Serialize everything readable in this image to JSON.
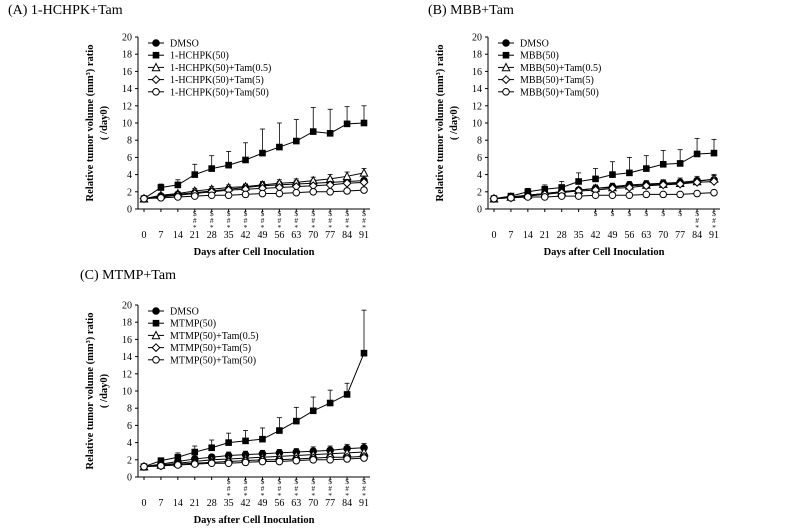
{
  "chart_data": [
    {
      "type": "line",
      "title": "(A) 1-HCHPK+Tam",
      "xlabel": "Days after Cell Inoculation",
      "ylabel_line1": "Relative tumor volume (mm³) ratio",
      "ylabel_line2": "( /day0)",
      "ylim": [
        0,
        20
      ],
      "yticks": [
        0,
        2,
        4,
        6,
        8,
        10,
        12,
        14,
        16,
        18,
        20
      ],
      "x": [
        0,
        7,
        14,
        21,
        28,
        35,
        42,
        49,
        56,
        63,
        70,
        77,
        84,
        91
      ],
      "legend_position": "top-left",
      "series": [
        {
          "name": "DMSO",
          "marker": "circle-filled",
          "values": [
            1.2,
            1.5,
            1.7,
            1.9,
            2.1,
            2.3,
            2.5,
            2.7,
            2.8,
            2.9,
            3.0,
            3.1,
            3.2,
            3.3
          ],
          "errors": [
            0.1,
            0.2,
            0.2,
            0.3,
            0.3,
            0.3,
            0.4,
            0.4,
            0.4,
            0.4,
            0.4,
            0.5,
            0.5,
            0.5
          ]
        },
        {
          "name": "1-HCHPK(50)",
          "marker": "square-filled",
          "values": [
            1.2,
            2.5,
            2.8,
            4.0,
            4.7,
            5.1,
            5.7,
            6.5,
            7.2,
            7.9,
            9.0,
            8.8,
            9.9,
            10.0
          ],
          "errors": [
            0.1,
            0.4,
            0.6,
            1.2,
            1.5,
            1.6,
            2.0,
            2.8,
            2.8,
            2.5,
            2.8,
            2.8,
            2.0,
            2.0
          ]
        },
        {
          "name": "1-HCHPK(50)+Tam(0.5)",
          "marker": "triangle-open",
          "values": [
            1.2,
            1.6,
            1.8,
            2.1,
            2.3,
            2.5,
            2.6,
            2.8,
            3.0,
            3.1,
            3.3,
            3.5,
            3.8,
            4.2
          ],
          "errors": [
            0.1,
            0.2,
            0.2,
            0.3,
            0.3,
            0.3,
            0.3,
            0.4,
            0.4,
            0.4,
            0.4,
            0.5,
            0.5,
            0.5
          ]
        },
        {
          "name": "1-HCHPK(50)+Tam(5)",
          "marker": "diamond-open",
          "values": [
            1.2,
            1.4,
            1.6,
            1.8,
            2.0,
            2.2,
            2.3,
            2.4,
            2.5,
            2.6,
            2.7,
            2.8,
            3.0,
            3.1
          ],
          "errors": [
            0.1,
            0.2,
            0.2,
            0.2,
            0.3,
            0.3,
            0.3,
            0.3,
            0.3,
            0.3,
            0.3,
            0.4,
            0.4,
            0.4
          ]
        },
        {
          "name": "1-HCHPK(50)+Tam(50)",
          "marker": "circle-open",
          "values": [
            1.2,
            1.3,
            1.4,
            1.5,
            1.6,
            1.6,
            1.7,
            1.8,
            1.8,
            1.9,
            2.0,
            2.0,
            2.1,
            2.2
          ],
          "errors": [
            0.1,
            0.1,
            0.1,
            0.2,
            0.2,
            0.2,
            0.2,
            0.2,
            0.2,
            0.2,
            0.3,
            0.3,
            0.3,
            0.3
          ]
        }
      ],
      "annotations": [
        {
          "x": 21,
          "lines": [
            "$",
            "#",
            "*"
          ]
        },
        {
          "x": 28,
          "lines": [
            "$",
            "#",
            "*"
          ]
        },
        {
          "x": 35,
          "lines": [
            "$",
            "#",
            "*"
          ]
        },
        {
          "x": 42,
          "lines": [
            "$",
            "#",
            "*"
          ]
        },
        {
          "x": 49,
          "lines": [
            "$",
            "#",
            "*"
          ]
        },
        {
          "x": 56,
          "lines": [
            "$",
            "#",
            "*"
          ]
        },
        {
          "x": 63,
          "lines": [
            "$",
            "#",
            "*"
          ]
        },
        {
          "x": 70,
          "lines": [
            "$",
            "#",
            "*"
          ]
        },
        {
          "x": 77,
          "lines": [
            "$",
            "#",
            "*"
          ]
        },
        {
          "x": 84,
          "lines": [
            "$",
            "#",
            "*"
          ]
        },
        {
          "x": 91,
          "lines": [
            "$",
            "#",
            "*"
          ]
        }
      ]
    },
    {
      "type": "line",
      "title": "(B) MBB+Tam",
      "xlabel": "Days after Cell Inoculation",
      "ylabel_line1": "Relative tumor volume (mm³) ratio",
      "ylabel_line2": "( /day0)",
      "ylim": [
        0,
        20
      ],
      "yticks": [
        0,
        2,
        4,
        6,
        8,
        10,
        12,
        14,
        16,
        18,
        20
      ],
      "x": [
        0,
        7,
        14,
        21,
        28,
        35,
        42,
        49,
        56,
        63,
        70,
        77,
        84,
        91
      ],
      "legend_position": "top-left",
      "series": [
        {
          "name": "DMSO",
          "marker": "circle-filled",
          "values": [
            1.2,
            1.4,
            1.6,
            1.8,
            2.0,
            2.2,
            2.4,
            2.6,
            2.8,
            2.9,
            3.0,
            3.1,
            3.3,
            3.4
          ],
          "errors": [
            0.1,
            0.2,
            0.2,
            0.3,
            0.3,
            0.3,
            0.4,
            0.4,
            0.4,
            0.4,
            0.4,
            0.5,
            0.5,
            0.5
          ]
        },
        {
          "name": "MBB(50)",
          "marker": "square-filled",
          "values": [
            1.2,
            1.5,
            2.0,
            2.3,
            2.5,
            3.2,
            3.5,
            4.0,
            4.2,
            4.7,
            5.2,
            5.3,
            6.4,
            6.5
          ],
          "errors": [
            0.1,
            0.2,
            0.4,
            0.5,
            0.7,
            1.0,
            1.2,
            1.5,
            1.8,
            1.5,
            1.6,
            1.6,
            1.8,
            1.6
          ]
        },
        {
          "name": "MBB(50)+Tam(0.5)",
          "marker": "triangle-open",
          "values": [
            1.2,
            1.4,
            1.6,
            1.8,
            2.0,
            2.2,
            2.4,
            2.5,
            2.7,
            2.8,
            2.9,
            3.0,
            3.2,
            3.5
          ],
          "errors": [
            0.1,
            0.2,
            0.2,
            0.3,
            0.3,
            0.3,
            0.3,
            0.3,
            0.4,
            0.4,
            0.4,
            0.4,
            0.4,
            0.5
          ]
        },
        {
          "name": "MBB(50)+Tam(5)",
          "marker": "diamond-open",
          "values": [
            1.2,
            1.3,
            1.5,
            1.7,
            1.9,
            2.1,
            2.2,
            2.4,
            2.5,
            2.7,
            2.8,
            2.9,
            3.1,
            3.2
          ],
          "errors": [
            0.1,
            0.1,
            0.2,
            0.2,
            0.3,
            0.3,
            0.3,
            0.3,
            0.3,
            0.3,
            0.4,
            0.4,
            0.4,
            0.4
          ]
        },
        {
          "name": "MBB(50)+Tam(50)",
          "marker": "circle-open",
          "values": [
            1.2,
            1.3,
            1.4,
            1.4,
            1.5,
            1.5,
            1.6,
            1.6,
            1.6,
            1.7,
            1.7,
            1.7,
            1.8,
            1.9
          ],
          "errors": [
            0.1,
            0.1,
            0.1,
            0.1,
            0.2,
            0.2,
            0.2,
            0.2,
            0.2,
            0.2,
            0.2,
            0.2,
            0.2,
            0.2
          ]
        }
      ],
      "annotations": [
        {
          "x": 42,
          "lines": [
            "$"
          ]
        },
        {
          "x": 49,
          "lines": [
            "$"
          ]
        },
        {
          "x": 56,
          "lines": [
            "$"
          ]
        },
        {
          "x": 63,
          "lines": [
            "$"
          ]
        },
        {
          "x": 70,
          "lines": [
            "$"
          ]
        },
        {
          "x": 77,
          "lines": [
            "$"
          ]
        },
        {
          "x": 84,
          "lines": [
            "$",
            "#",
            "*"
          ]
        },
        {
          "x": 91,
          "lines": [
            "$",
            "#",
            "*"
          ]
        }
      ]
    },
    {
      "type": "line",
      "title": "(C) MTMP+Tam",
      "xlabel": "Days after Cell Inoculation",
      "ylabel_line1": "Relative tumor volume (mm³) ratio",
      "ylabel_line2": "( /day0)",
      "ylim": [
        0,
        20
      ],
      "yticks": [
        0,
        2,
        4,
        6,
        8,
        10,
        12,
        14,
        16,
        18,
        20
      ],
      "x": [
        0,
        7,
        14,
        21,
        28,
        35,
        42,
        49,
        56,
        63,
        70,
        77,
        84,
        91
      ],
      "legend_position": "top-left",
      "series": [
        {
          "name": "DMSO",
          "marker": "circle-filled",
          "values": [
            1.2,
            1.5,
            1.8,
            2.1,
            2.3,
            2.5,
            2.6,
            2.7,
            2.8,
            2.9,
            3.0,
            3.1,
            3.3,
            3.4
          ],
          "errors": [
            0.1,
            0.2,
            0.2,
            0.3,
            0.3,
            0.4,
            0.4,
            0.4,
            0.4,
            0.4,
            0.5,
            0.5,
            0.5,
            0.5
          ]
        },
        {
          "name": "MTMP(50)",
          "marker": "square-filled",
          "values": [
            1.2,
            1.9,
            2.3,
            2.9,
            3.4,
            4.0,
            4.2,
            4.4,
            5.4,
            6.5,
            7.7,
            8.6,
            9.6,
            14.4
          ],
          "errors": [
            0.1,
            0.3,
            0.5,
            0.7,
            0.9,
            1.1,
            1.2,
            1.3,
            1.5,
            1.6,
            1.6,
            1.5,
            1.3,
            5.0
          ]
        },
        {
          "name": "MTMP(50)+Tam(0.5)",
          "marker": "triangle-open",
          "values": [
            1.2,
            1.4,
            1.6,
            1.8,
            2.0,
            2.1,
            2.2,
            2.3,
            2.4,
            2.5,
            2.6,
            2.7,
            2.8,
            2.9
          ],
          "errors": [
            0.1,
            0.2,
            0.2,
            0.3,
            0.3,
            0.3,
            0.3,
            0.3,
            0.3,
            0.3,
            0.3,
            0.4,
            0.4,
            0.4
          ]
        },
        {
          "name": "MTMP(50)+Tam(5)",
          "marker": "diamond-open",
          "values": [
            1.2,
            1.3,
            1.5,
            1.6,
            1.7,
            1.8,
            1.9,
            2.0,
            2.0,
            2.1,
            2.2,
            2.3,
            2.3,
            2.4
          ],
          "errors": [
            0.1,
            0.1,
            0.2,
            0.2,
            0.2,
            0.2,
            0.2,
            0.3,
            0.3,
            0.3,
            0.3,
            0.3,
            0.3,
            0.3
          ]
        },
        {
          "name": "MTMP(50)+Tam(50)",
          "marker": "circle-open",
          "values": [
            1.2,
            1.3,
            1.4,
            1.5,
            1.6,
            1.6,
            1.7,
            1.8,
            1.8,
            1.9,
            2.0,
            2.0,
            2.1,
            2.2
          ],
          "errors": [
            0.1,
            0.1,
            0.1,
            0.2,
            0.2,
            0.2,
            0.2,
            0.2,
            0.2,
            0.2,
            0.2,
            0.2,
            0.2,
            0.2
          ]
        }
      ],
      "annotations": [
        {
          "x": 35,
          "lines": [
            "$",
            "#",
            "*"
          ]
        },
        {
          "x": 42,
          "lines": [
            "$",
            "#",
            "*"
          ]
        },
        {
          "x": 49,
          "lines": [
            "$",
            "#",
            "*"
          ]
        },
        {
          "x": 56,
          "lines": [
            "$",
            "#",
            "*"
          ]
        },
        {
          "x": 63,
          "lines": [
            "$",
            "#",
            "*"
          ]
        },
        {
          "x": 70,
          "lines": [
            "$",
            "#",
            "*"
          ]
        },
        {
          "x": 77,
          "lines": [
            "$",
            "#",
            "*"
          ]
        },
        {
          "x": 84,
          "lines": [
            "$",
            "#",
            "*"
          ]
        },
        {
          "x": 91,
          "lines": [
            "$",
            "#",
            "*"
          ]
        }
      ]
    }
  ]
}
